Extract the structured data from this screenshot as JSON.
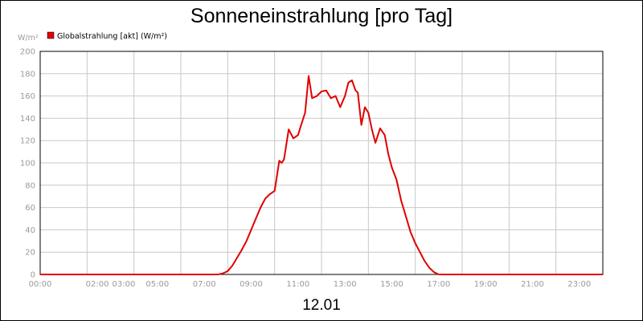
{
  "chart_data": {
    "type": "line",
    "title": "Sonneneinstrahlung [pro Tag]",
    "ylabel": "W/m²",
    "xlabel": "12.01",
    "ylim": [
      0,
      200
    ],
    "yticks": [
      0,
      20,
      40,
      60,
      80,
      100,
      120,
      140,
      160,
      180,
      200
    ],
    "xlim": [
      0,
      24
    ],
    "xticks": [
      {
        "value": 0,
        "label": "00:00"
      },
      {
        "value": 2,
        "label": "02:00"
      },
      {
        "value": 3,
        "label": "03:00"
      },
      {
        "value": 5,
        "label": "05:00"
      },
      {
        "value": 7,
        "label": "07:00"
      },
      {
        "value": 9,
        "label": "09:00"
      },
      {
        "value": 11,
        "label": "11:00"
      },
      {
        "value": 13,
        "label": "13:00"
      },
      {
        "value": 15,
        "label": "15:00"
      },
      {
        "value": 17,
        "label": "17:00"
      },
      {
        "value": 19,
        "label": "19:00"
      },
      {
        "value": 21,
        "label": "21:00"
      },
      {
        "value": 23,
        "label": "23:00"
      }
    ],
    "grid": true,
    "legend_position": "top-left",
    "series": [
      {
        "name": "Globalstrahlung [akt] (W/m²)",
        "color": "#e00000",
        "x": [
          0,
          7.6,
          7.8,
          8.0,
          8.2,
          8.4,
          8.6,
          8.8,
          9.0,
          9.2,
          9.4,
          9.6,
          9.8,
          10.0,
          10.2,
          10.3,
          10.4,
          10.6,
          10.8,
          11.0,
          11.1,
          11.3,
          11.45,
          11.6,
          11.8,
          12.0,
          12.2,
          12.4,
          12.6,
          12.8,
          13.0,
          13.15,
          13.3,
          13.45,
          13.55,
          13.7,
          13.85,
          14.0,
          14.15,
          14.3,
          14.5,
          14.7,
          14.85,
          15.0,
          15.2,
          15.4,
          15.6,
          15.8,
          16.0,
          16.2,
          16.4,
          16.6,
          16.8,
          17.0,
          17.2,
          24
        ],
        "values": [
          0,
          0,
          1,
          3,
          8,
          15,
          22,
          30,
          40,
          50,
          60,
          68,
          72,
          75,
          102,
          100,
          103,
          130,
          122,
          125,
          132,
          145,
          178,
          158,
          160,
          164,
          165,
          158,
          160,
          150,
          160,
          172,
          174,
          165,
          163,
          134,
          150,
          145,
          130,
          118,
          131,
          125,
          108,
          96,
          85,
          66,
          52,
          38,
          28,
          20,
          12,
          6,
          2,
          0,
          0,
          0
        ]
      }
    ]
  }
}
